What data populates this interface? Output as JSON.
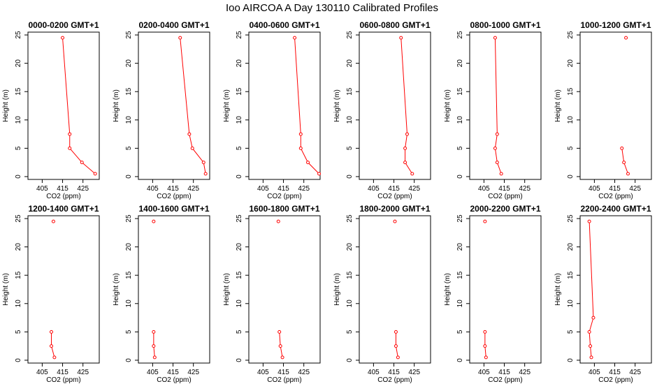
{
  "chart_data": {
    "type": "line",
    "title": "Ioo AIRCOA A  Day 130110  Calibrated Profiles",
    "xlabel": "CO2 (ppm)",
    "ylabel": "Height (m)",
    "xlim": [
      398,
      433
    ],
    "ylim": [
      -0.5,
      25.5
    ],
    "x_ticks": [
      405,
      415,
      425
    ],
    "y_ticks": [
      0,
      5,
      10,
      15,
      20,
      25
    ],
    "grid": false,
    "legend": "none",
    "line_color": "#ff0000",
    "marker": "open-circle",
    "panels": [
      {
        "title": "0000-0200 GMT+1",
        "segments": [
          [
            {
              "x": 415.0,
              "y": 24.5
            },
            {
              "x": 418.5,
              "y": 7.5
            },
            {
              "x": 418.5,
              "y": 5.0
            },
            {
              "x": 424.5,
              "y": 2.5
            },
            {
              "x": 431.0,
              "y": 0.5
            }
          ]
        ]
      },
      {
        "title": "0200-0400 GMT+1",
        "segments": [
          [
            {
              "x": 418.5,
              "y": 24.5
            },
            {
              "x": 423.0,
              "y": 7.5
            },
            {
              "x": 424.5,
              "y": 5.0
            },
            {
              "x": 430.0,
              "y": 2.5
            },
            {
              "x": 431.0,
              "y": 0.5
            }
          ]
        ]
      },
      {
        "title": "0400-0600 GMT+1",
        "segments": [
          [
            {
              "x": 420.5,
              "y": 24.5
            },
            {
              "x": 423.5,
              "y": 7.5
            },
            {
              "x": 423.5,
              "y": 5.0
            },
            {
              "x": 427.0,
              "y": 2.5
            },
            {
              "x": 432.5,
              "y": 0.5
            }
          ]
        ]
      },
      {
        "title": "0600-0800 GMT+1",
        "segments": [
          [
            {
              "x": 418.5,
              "y": 24.5
            },
            {
              "x": 421.5,
              "y": 7.5
            },
            {
              "x": 420.5,
              "y": 5.0
            },
            {
              "x": 420.5,
              "y": 2.5
            },
            {
              "x": 424.0,
              "y": 0.5
            }
          ]
        ]
      },
      {
        "title": "0800-1000 GMT+1",
        "segments": [
          [
            {
              "x": 410.5,
              "y": 24.5
            },
            {
              "x": 411.5,
              "y": 7.5
            },
            {
              "x": 410.5,
              "y": 5.0
            },
            {
              "x": 411.5,
              "y": 2.5
            },
            {
              "x": 413.5,
              "y": 0.5
            }
          ]
        ]
      },
      {
        "title": "1000-1200 GMT+1",
        "segments": [
          [
            {
              "x": 420.5,
              "y": 24.5
            }
          ],
          [
            {
              "x": 418.5,
              "y": 5.0
            },
            {
              "x": 419.5,
              "y": 2.5
            },
            {
              "x": 421.5,
              "y": 0.5
            }
          ]
        ]
      },
      {
        "title": "1200-1400 GMT+1",
        "segments": [
          [
            {
              "x": 410.5,
              "y": 24.5
            }
          ],
          [
            {
              "x": 409.5,
              "y": 5.0
            },
            {
              "x": 409.5,
              "y": 2.5
            },
            {
              "x": 411.0,
              "y": 0.5
            }
          ]
        ]
      },
      {
        "title": "1400-1600 GMT+1",
        "segments": [
          [
            {
              "x": 405.5,
              "y": 24.5
            }
          ],
          [
            {
              "x": 405.5,
              "y": 5.0
            },
            {
              "x": 405.5,
              "y": 2.5
            },
            {
              "x": 406.0,
              "y": 0.5
            }
          ]
        ]
      },
      {
        "title": "1600-1800 GMT+1",
        "segments": [
          [
            {
              "x": 412.5,
              "y": 24.5
            }
          ],
          [
            {
              "x": 413.0,
              "y": 5.0
            },
            {
              "x": 413.5,
              "y": 2.5
            },
            {
              "x": 414.5,
              "y": 0.5
            }
          ]
        ]
      },
      {
        "title": "1800-2000 GMT+1",
        "segments": [
          [
            {
              "x": 415.5,
              "y": 24.5
            }
          ],
          [
            {
              "x": 416.0,
              "y": 5.0
            },
            {
              "x": 416.0,
              "y": 2.5
            },
            {
              "x": 417.0,
              "y": 0.5
            }
          ]
        ]
      },
      {
        "title": "2000-2200 GMT+1",
        "segments": [
          [
            {
              "x": 405.5,
              "y": 24.5
            }
          ],
          [
            {
              "x": 405.5,
              "y": 5.0
            },
            {
              "x": 405.5,
              "y": 2.5
            },
            {
              "x": 406.0,
              "y": 0.5
            }
          ]
        ]
      },
      {
        "title": "2200-2400 GMT+1",
        "segments": [
          [
            {
              "x": 402.5,
              "y": 24.5
            },
            {
              "x": 404.5,
              "y": 7.5
            },
            {
              "x": 402.5,
              "y": 5.0
            },
            {
              "x": 403.0,
              "y": 2.5
            },
            {
              "x": 403.5,
              "y": 0.5
            }
          ]
        ]
      }
    ]
  }
}
